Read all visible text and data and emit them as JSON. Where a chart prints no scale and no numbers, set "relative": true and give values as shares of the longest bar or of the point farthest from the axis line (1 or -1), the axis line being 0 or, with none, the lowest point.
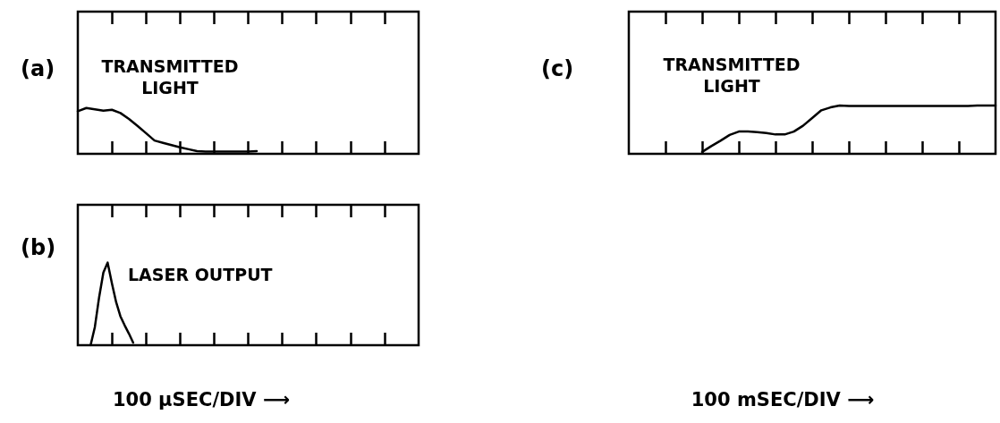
{
  "chart_data": [
    {
      "type": "line",
      "title": "(a)",
      "annotations": [
        "TRANSMITTED\nLIGHT"
      ],
      "relative": true,
      "marker": "none",
      "line_style": "solid",
      "categories": [
        null,
        null,
        null,
        null,
        null,
        null,
        null,
        null,
        null,
        null,
        null,
        null,
        null,
        null,
        null,
        null,
        null,
        null,
        null,
        null,
        null,
        null,
        null,
        null,
        null,
        null,
        null,
        null,
        null,
        null,
        null,
        null,
        null,
        null,
        null,
        null,
        null,
        null,
        null,
        null,
        null
      ],
      "series": [
        {
          "color": "#000000",
          "values": [
            0.93,
            1,
            0.97,
            0.94,
            0.96,
            0.89,
            0.76,
            0.61,
            0.45,
            0.29,
            0.24,
            0.19,
            0.14,
            0.1,
            0.06,
            0.05,
            0.05,
            0.05,
            0.05,
            0.05,
            0.05,
            0.06,
            null,
            null,
            null,
            null,
            null,
            null,
            null,
            null,
            null,
            null,
            null,
            null,
            null,
            null,
            null,
            null,
            null,
            null,
            null
          ]
        }
      ]
    },
    {
      "type": "line",
      "title": "(b)",
      "annotations": [
        "LASER OUTPUT"
      ],
      "xlabel": "100 μSEC/DIV ⟶",
      "relative": true,
      "marker": "none",
      "line_style": "solid",
      "categories": [
        null,
        null,
        null,
        null,
        null,
        null,
        null,
        null,
        null,
        null,
        null,
        null,
        null,
        null,
        null,
        null,
        null,
        null,
        null,
        null,
        null,
        null,
        null,
        null,
        null,
        null,
        null,
        null,
        null,
        null,
        null,
        null,
        null,
        null,
        null,
        null,
        null,
        null,
        null,
        null,
        null,
        null,
        null,
        null,
        null,
        null,
        null,
        null,
        null,
        null,
        null,
        null,
        null,
        null,
        null,
        null,
        null,
        null,
        null,
        null,
        null,
        null,
        null,
        null,
        null,
        null,
        null,
        null,
        null,
        null,
        null,
        null,
        null,
        null,
        null,
        null,
        null,
        null,
        null,
        null,
        null
      ],
      "series": [
        {
          "color": "#000000",
          "values": [
            null,
            null,
            null,
            0,
            0.22,
            0.58,
            0.88,
            1,
            0.75,
            0.52,
            0.35,
            0.24,
            0.14,
            0.03,
            null,
            null,
            null,
            null,
            null,
            null,
            null,
            null,
            null,
            null,
            null,
            null,
            null,
            null,
            null,
            null,
            null,
            null,
            null,
            null,
            null,
            null,
            null,
            null,
            null,
            null,
            null,
            null,
            null,
            null,
            null,
            null,
            null,
            null,
            null,
            null,
            null,
            null,
            null,
            null,
            null,
            null,
            null,
            null,
            null,
            null,
            null,
            null,
            null,
            null,
            null,
            null,
            null,
            null,
            null,
            null,
            null,
            null,
            null,
            null,
            null,
            null,
            null,
            null,
            null,
            null,
            null
          ]
        }
      ]
    },
    {
      "type": "line",
      "title": "(c)",
      "annotations": [
        "TRANSMITTED\nLIGHT"
      ],
      "xlabel": "100 mSEC/DIV ⟶",
      "relative": true,
      "marker": "none",
      "line_style": "solid",
      "categories": [
        null,
        null,
        null,
        null,
        null,
        null,
        null,
        null,
        null,
        null,
        null,
        null,
        null,
        null,
        null,
        null,
        null,
        null,
        null,
        null,
        null,
        null,
        null,
        null,
        null,
        null,
        null,
        null,
        null,
        null,
        null,
        null,
        null,
        null,
        null,
        null,
        null,
        null,
        null,
        null,
        null
      ],
      "series": [
        {
          "color": "#000000",
          "values": [
            null,
            null,
            null,
            null,
            null,
            null,
            null,
            null,
            0.04,
            0.16,
            0.27,
            0.39,
            0.46,
            0.46,
            0.45,
            0.43,
            0.4,
            0.4,
            0.46,
            0.58,
            0.74,
            0.9,
            0.96,
            1,
            0.99,
            0.99,
            0.99,
            0.99,
            0.99,
            0.99,
            0.99,
            0.99,
            0.99,
            0.99,
            0.99,
            0.99,
            0.99,
            0.99,
            1,
            1,
            1
          ]
        }
      ]
    }
  ]
}
